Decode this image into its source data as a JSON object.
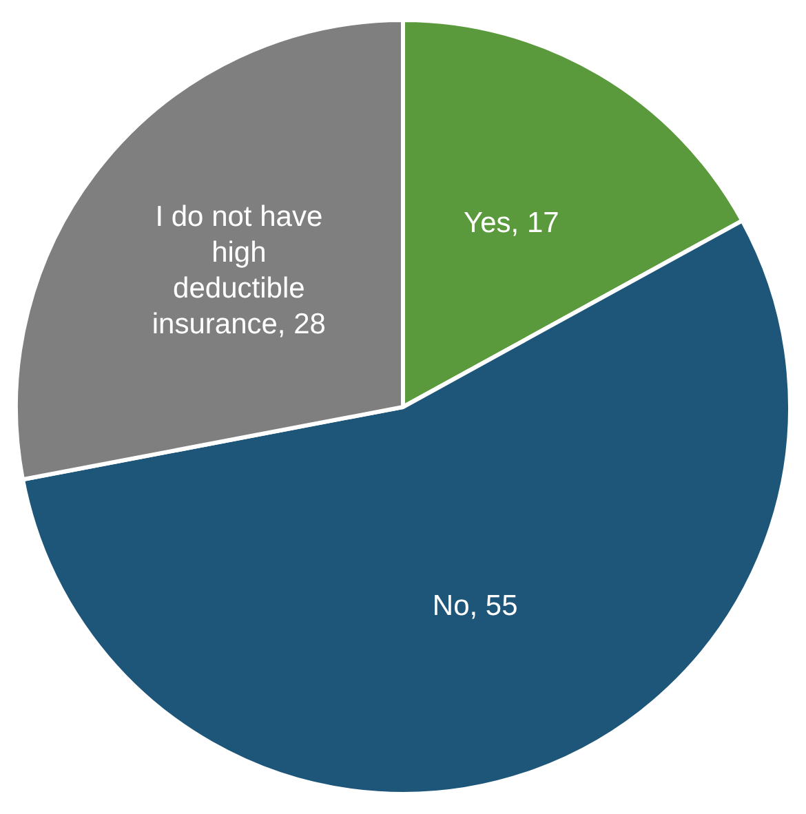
{
  "chart_data": {
    "type": "pie",
    "categories": [
      "Yes",
      "No",
      "I do not have high deductible insurance"
    ],
    "values": [
      17,
      55,
      28
    ],
    "colors": [
      "#5b9a3c",
      "#1e5679",
      "#7f7f7f"
    ],
    "value_labels": [
      ", 17",
      ", 55",
      ", 28"
    ],
    "legend": false
  }
}
